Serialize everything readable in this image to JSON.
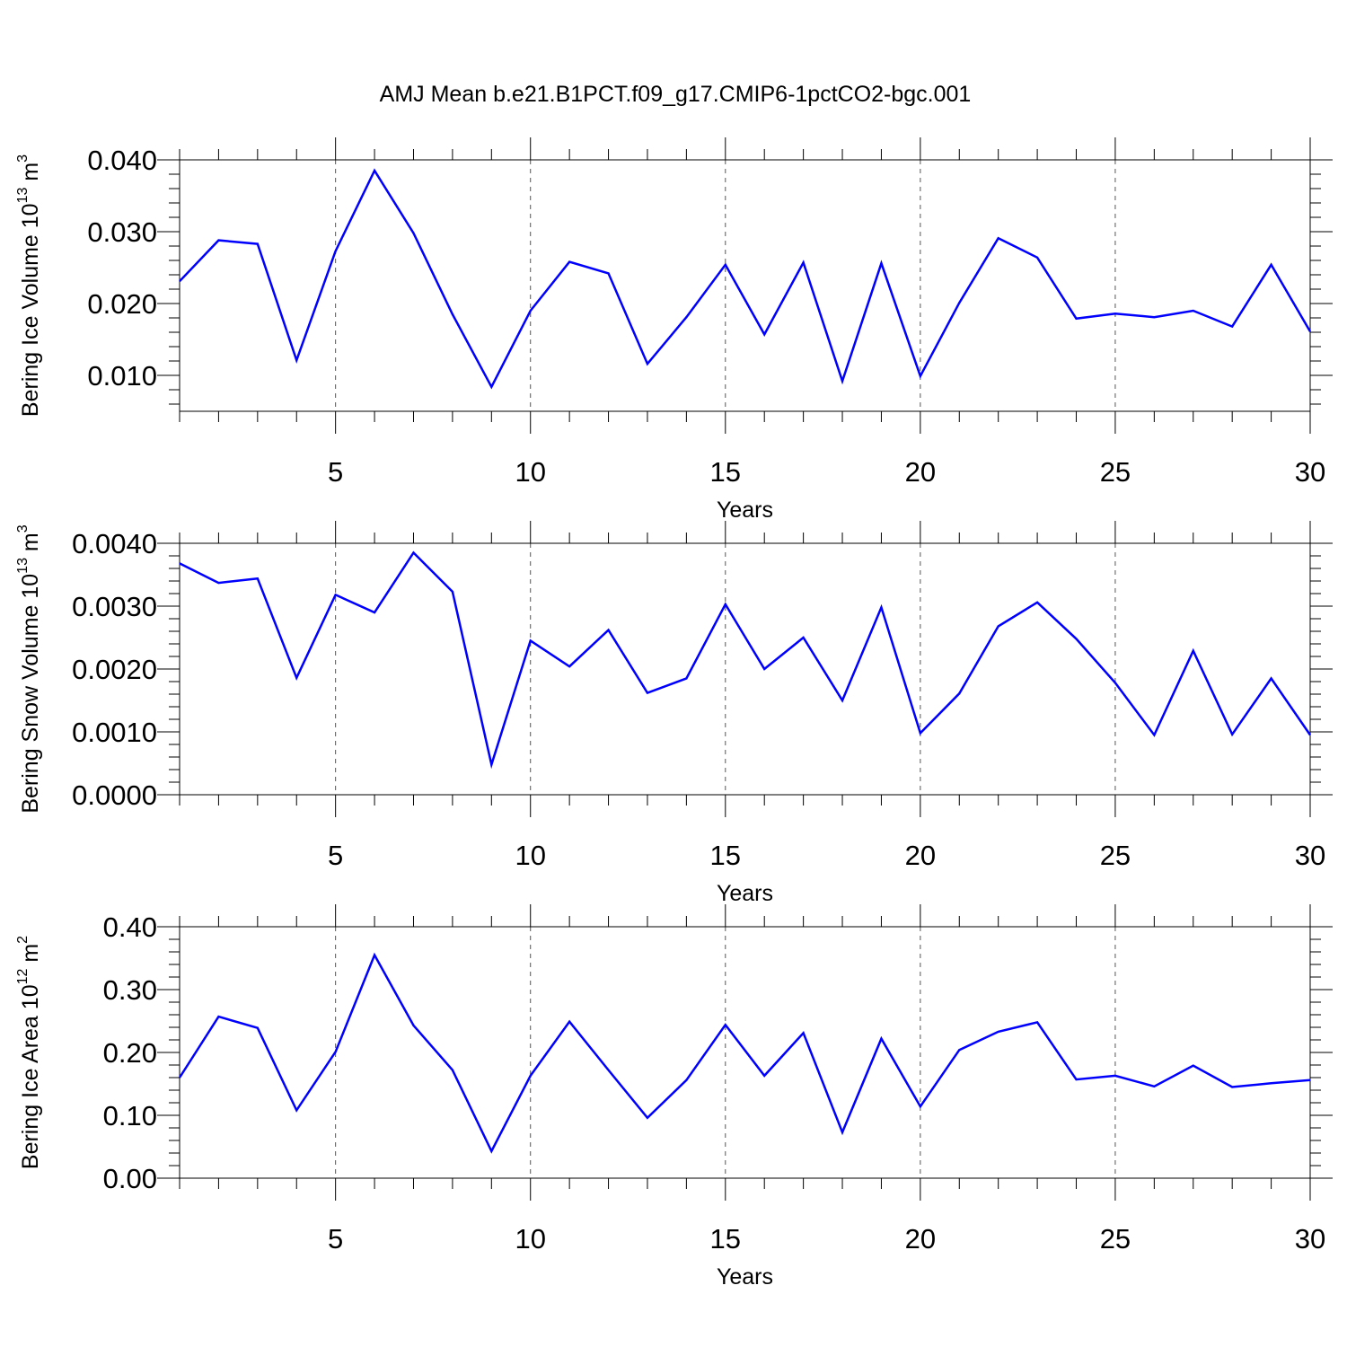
{
  "chart_data": {
    "title": "AMJ Mean b.e21.B1PCT.f09_g17.CMIP6-1pctCO2-bgc.001",
    "line_color": "#0000ff",
    "panels": [
      {
        "type": "line",
        "ylabel": "Bering Ice Volume 10",
        "ylabel_exp": "13",
        "ylabel_unit": " m",
        "ylabel_unit_exp": "3",
        "xlabel": "Years",
        "x": [
          1,
          2,
          3,
          4,
          5,
          6,
          7,
          8,
          9,
          10,
          11,
          12,
          13,
          14,
          15,
          16,
          17,
          18,
          19,
          20,
          21,
          22,
          23,
          24,
          25,
          26,
          27,
          28,
          29,
          30
        ],
        "values": [
          0.0231,
          0.0288,
          0.0283,
          0.0121,
          0.0273,
          0.0385,
          0.0298,
          0.0185,
          0.0084,
          0.019,
          0.0258,
          0.0242,
          0.0116,
          0.0181,
          0.0254,
          0.0157,
          0.0257,
          0.0092,
          0.0256,
          0.0099,
          0.0201,
          0.0291,
          0.0264,
          0.0179,
          0.0186,
          0.0181,
          0.019,
          0.0168,
          0.0254,
          0.0161
        ],
        "xlim": [
          1,
          30
        ],
        "ylim": [
          0.005,
          0.04
        ],
        "xticks": [
          5,
          10,
          15,
          20,
          25,
          30
        ],
        "xtick_labels": [
          "5",
          "10",
          "15",
          "20",
          "25",
          "30"
        ],
        "yticks": [
          0.01,
          0.02,
          0.03,
          0.04
        ],
        "ytick_labels": [
          "0.010",
          "0.020",
          "0.030",
          "0.040"
        ],
        "grid": "vertical dashed at major x ticks"
      },
      {
        "type": "line",
        "ylabel": "Bering Snow Volume 10",
        "ylabel_exp": "13",
        "ylabel_unit": " m",
        "ylabel_unit_exp": "3",
        "xlabel": "Years",
        "x": [
          1,
          2,
          3,
          4,
          5,
          6,
          7,
          8,
          9,
          10,
          11,
          12,
          13,
          14,
          15,
          16,
          17,
          18,
          19,
          20,
          21,
          22,
          23,
          24,
          25,
          26,
          27,
          28,
          29,
          30
        ],
        "values": [
          0.00368,
          0.00337,
          0.00344,
          0.00186,
          0.00318,
          0.0029,
          0.00385,
          0.00323,
          0.00048,
          0.00245,
          0.00204,
          0.00262,
          0.00162,
          0.00185,
          0.00303,
          0.002,
          0.0025,
          0.0015,
          0.00298,
          0.00098,
          0.00161,
          0.00268,
          0.00306,
          0.00248,
          0.00178,
          0.00095,
          0.00229,
          0.00096,
          0.00185,
          0.00095
        ],
        "xlim": [
          1,
          30
        ],
        "ylim": [
          0.0,
          0.004
        ],
        "xticks": [
          5,
          10,
          15,
          20,
          25,
          30
        ],
        "xtick_labels": [
          "5",
          "10",
          "15",
          "20",
          "25",
          "30"
        ],
        "yticks": [
          0.0,
          0.001,
          0.002,
          0.003,
          0.004
        ],
        "ytick_labels": [
          "0.0000",
          "0.0010",
          "0.0020",
          "0.0030",
          "0.0040"
        ],
        "grid": "vertical dashed at major x ticks"
      },
      {
        "type": "line",
        "ylabel": "Bering Ice Area 10",
        "ylabel_exp": "12",
        "ylabel_unit": " m",
        "ylabel_unit_exp": "2",
        "xlabel": "Years",
        "x": [
          1,
          2,
          3,
          4,
          5,
          6,
          7,
          8,
          9,
          10,
          11,
          12,
          13,
          14,
          15,
          16,
          17,
          18,
          19,
          20,
          21,
          22,
          23,
          24,
          25,
          26,
          27,
          28,
          29,
          30
        ],
        "values": [
          0.16,
          0.257,
          0.239,
          0.108,
          0.201,
          0.355,
          0.243,
          0.172,
          0.043,
          0.163,
          0.249,
          0.172,
          0.096,
          0.156,
          0.244,
          0.163,
          0.231,
          0.073,
          0.222,
          0.114,
          0.204,
          0.233,
          0.248,
          0.157,
          0.163,
          0.146,
          0.179,
          0.145,
          0.151,
          0.156
        ],
        "xlim": [
          1,
          30
        ],
        "ylim": [
          0.0,
          0.4
        ],
        "xticks": [
          5,
          10,
          15,
          20,
          25,
          30
        ],
        "xtick_labels": [
          "5",
          "10",
          "15",
          "20",
          "25",
          "30"
        ],
        "yticks": [
          0.0,
          0.1,
          0.2,
          0.3,
          0.4
        ],
        "ytick_labels": [
          "0.00",
          "0.10",
          "0.20",
          "0.30",
          "0.40"
        ],
        "grid": "vertical dashed at major x ticks"
      }
    ]
  }
}
